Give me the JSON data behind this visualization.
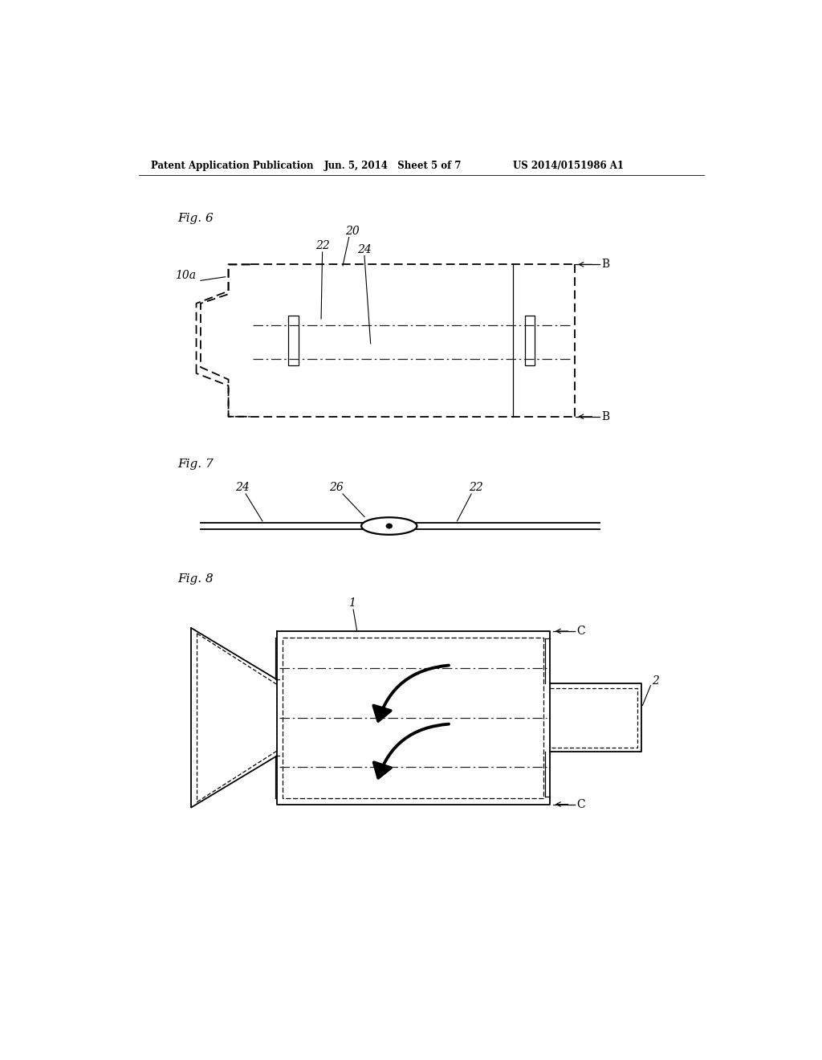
{
  "bg_color": "#ffffff",
  "header_left": "Patent Application Publication",
  "header_mid": "Jun. 5, 2014   Sheet 5 of 7",
  "header_right": "US 2014/0151986 A1",
  "fig6_label": "Fig. 6",
  "fig7_label": "Fig. 7",
  "fig8_label": "Fig. 8",
  "line_color": "#000000"
}
